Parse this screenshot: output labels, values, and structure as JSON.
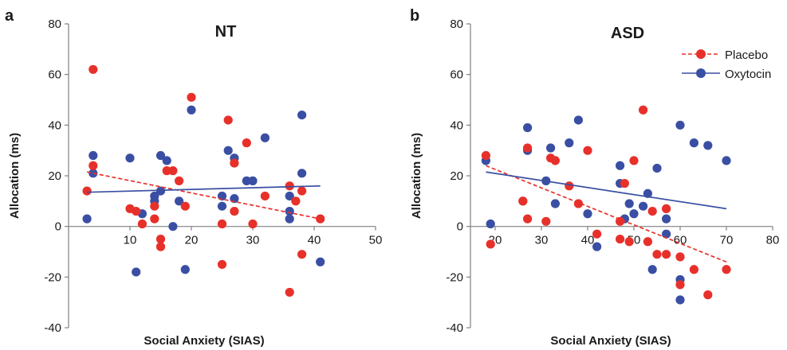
{
  "colors": {
    "placebo": "#e8302a",
    "oxytocin": "#3a4fa3",
    "axis": "#808080"
  },
  "chart_data": [
    {
      "type": "scatter",
      "panel_label": "a",
      "title": "NT",
      "xlabel": "Social Anxiety (SIAS)",
      "ylabel": "Allocation (ms)",
      "xlim": [
        0,
        50
      ],
      "ylim": [
        -40,
        80
      ],
      "xticks": [
        10,
        20,
        30,
        40,
        50
      ],
      "yticks": [
        -40,
        -20,
        0,
        20,
        40,
        60,
        80
      ],
      "grid": false,
      "series": [
        {
          "key": "placebo",
          "points": [
            [
              3,
              14
            ],
            [
              4,
              62
            ],
            [
              4,
              24
            ],
            [
              10,
              7
            ],
            [
              11,
              6
            ],
            [
              12,
              1
            ],
            [
              14,
              3
            ],
            [
              14,
              8
            ],
            [
              15,
              -5
            ],
            [
              15,
              -8
            ],
            [
              16,
              22
            ],
            [
              17,
              22
            ],
            [
              18,
              18
            ],
            [
              19,
              8
            ],
            [
              20,
              51
            ],
            [
              25,
              1
            ],
            [
              25,
              -15
            ],
            [
              26,
              42
            ],
            [
              27,
              25
            ],
            [
              27,
              6
            ],
            [
              29,
              33
            ],
            [
              30,
              1
            ],
            [
              32,
              12
            ],
            [
              36,
              16
            ],
            [
              36,
              -26
            ],
            [
              37,
              10
            ],
            [
              38,
              14
            ],
            [
              38,
              -11
            ],
            [
              41,
              3
            ]
          ],
          "fit": [
            [
              3,
              21.5
            ],
            [
              41,
              3
            ]
          ]
        },
        {
          "key": "oxytocin",
          "points": [
            [
              3,
              3
            ],
            [
              4,
              28
            ],
            [
              4,
              21
            ],
            [
              10,
              27
            ],
            [
              11,
              -18
            ],
            [
              12,
              5
            ],
            [
              14,
              12
            ],
            [
              14,
              10
            ],
            [
              15,
              28
            ],
            [
              15,
              14
            ],
            [
              16,
              26
            ],
            [
              17,
              0
            ],
            [
              18,
              10
            ],
            [
              19,
              -17
            ],
            [
              20,
              46
            ],
            [
              25,
              12
            ],
            [
              25,
              8
            ],
            [
              26,
              30
            ],
            [
              27,
              27
            ],
            [
              27,
              11
            ],
            [
              29,
              18
            ],
            [
              30,
              18
            ],
            [
              32,
              35
            ],
            [
              36,
              12
            ],
            [
              36,
              6
            ],
            [
              36,
              3
            ],
            [
              38,
              21
            ],
            [
              38,
              44
            ],
            [
              41,
              -14
            ]
          ],
          "fit": [
            [
              3,
              13.5
            ],
            [
              41,
              16
            ]
          ]
        }
      ]
    },
    {
      "type": "scatter",
      "panel_label": "b",
      "title": "ASD",
      "xlabel": "Social Anxiety (SIAS)",
      "ylabel": "Allocation (ms)",
      "xlim": [
        15,
        80
      ],
      "ylim": [
        -40,
        80
      ],
      "xticks": [
        20,
        30,
        40,
        50,
        60,
        70,
        80
      ],
      "yticks": [
        -40,
        -20,
        0,
        20,
        40,
        60,
        80
      ],
      "grid": false,
      "legend": {
        "position": "top-right",
        "entries": [
          "Placebo",
          "Oxytocin"
        ]
      },
      "series": [
        {
          "key": "placebo",
          "points": [
            [
              18,
              28
            ],
            [
              19,
              -7
            ],
            [
              26,
              10
            ],
            [
              27,
              31
            ],
            [
              27,
              3
            ],
            [
              31,
              2
            ],
            [
              32,
              27
            ],
            [
              33,
              26
            ],
            [
              36,
              16
            ],
            [
              38,
              9
            ],
            [
              40,
              30
            ],
            [
              42,
              -3
            ],
            [
              47,
              -5
            ],
            [
              47,
              2
            ],
            [
              48,
              17
            ],
            [
              49,
              -6
            ],
            [
              50,
              26
            ],
            [
              52,
              46
            ],
            [
              53,
              -6
            ],
            [
              54,
              6
            ],
            [
              55,
              -11
            ],
            [
              57,
              -11
            ],
            [
              57,
              7
            ],
            [
              60,
              -12
            ],
            [
              60,
              -23
            ],
            [
              63,
              -17
            ],
            [
              66,
              -27
            ],
            [
              70,
              -17
            ]
          ],
          "fit": [
            [
              18,
              24
            ],
            [
              70,
              -14
            ]
          ]
        },
        {
          "key": "oxytocin",
          "points": [
            [
              18,
              26
            ],
            [
              19,
              1
            ],
            [
              26,
              10
            ],
            [
              27,
              39
            ],
            [
              27,
              30
            ],
            [
              31,
              18
            ],
            [
              32,
              31
            ],
            [
              33,
              9
            ],
            [
              36,
              33
            ],
            [
              38,
              42
            ],
            [
              40,
              5
            ],
            [
              42,
              -8
            ],
            [
              47,
              24
            ],
            [
              47,
              17
            ],
            [
              48,
              3
            ],
            [
              49,
              9
            ],
            [
              50,
              5
            ],
            [
              52,
              8
            ],
            [
              53,
              13
            ],
            [
              54,
              -17
            ],
            [
              55,
              23
            ],
            [
              57,
              3
            ],
            [
              57,
              -3
            ],
            [
              60,
              40
            ],
            [
              60,
              -21
            ],
            [
              60,
              -29
            ],
            [
              63,
              33
            ],
            [
              66,
              32
            ],
            [
              70,
              26
            ]
          ],
          "fit": [
            [
              18,
              21.5
            ],
            [
              70,
              7
            ]
          ]
        }
      ]
    }
  ]
}
